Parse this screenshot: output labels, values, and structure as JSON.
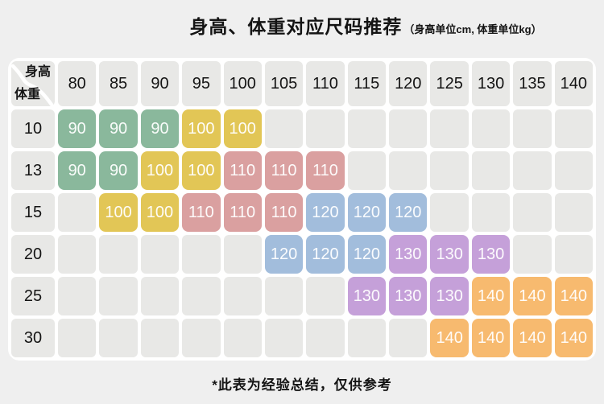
{
  "chart_data": {
    "type": "table",
    "title": "身高、体重对应尺码推荐",
    "subtitle": "（身高单位cm, 体重单位kg）",
    "col_header_label": "身高",
    "row_header_label": "体重",
    "columns_height_cm": [
      80,
      85,
      90,
      95,
      100,
      105,
      110,
      115,
      120,
      125,
      130,
      135,
      140
    ],
    "rows_weight_kg": [
      10,
      13,
      15,
      20,
      25,
      30
    ],
    "matrix_recommended_size": [
      [
        90,
        90,
        90,
        100,
        100,
        null,
        null,
        null,
        null,
        null,
        null,
        null,
        null
      ],
      [
        90,
        90,
        100,
        100,
        110,
        110,
        110,
        null,
        null,
        null,
        null,
        null,
        null
      ],
      [
        null,
        100,
        100,
        110,
        110,
        110,
        120,
        120,
        120,
        null,
        null,
        null,
        null
      ],
      [
        null,
        null,
        null,
        null,
        null,
        120,
        120,
        120,
        130,
        130,
        130,
        null,
        null
      ],
      [
        null,
        null,
        null,
        null,
        null,
        null,
        null,
        130,
        130,
        130,
        140,
        140,
        140
      ],
      [
        null,
        null,
        null,
        null,
        null,
        null,
        null,
        null,
        null,
        140,
        140,
        140,
        140
      ]
    ],
    "size_color_map": {
      "90": "#8ab89c",
      "100": "#e2c656",
      "110": "#daa0a0",
      "120": "#a2bddc",
      "130": "#c5a0d9",
      "140": "#f7ba6f"
    },
    "footnote": "*此表为经验总结，仅供参考"
  },
  "palette": {
    "page-bg": "#efefef",
    "panel-bg": "#ffffff",
    "cell-bg": "#e8e8e6",
    "text-dark": "#141414",
    "badge-text": "rgba(255,255,255,0.95)"
  }
}
